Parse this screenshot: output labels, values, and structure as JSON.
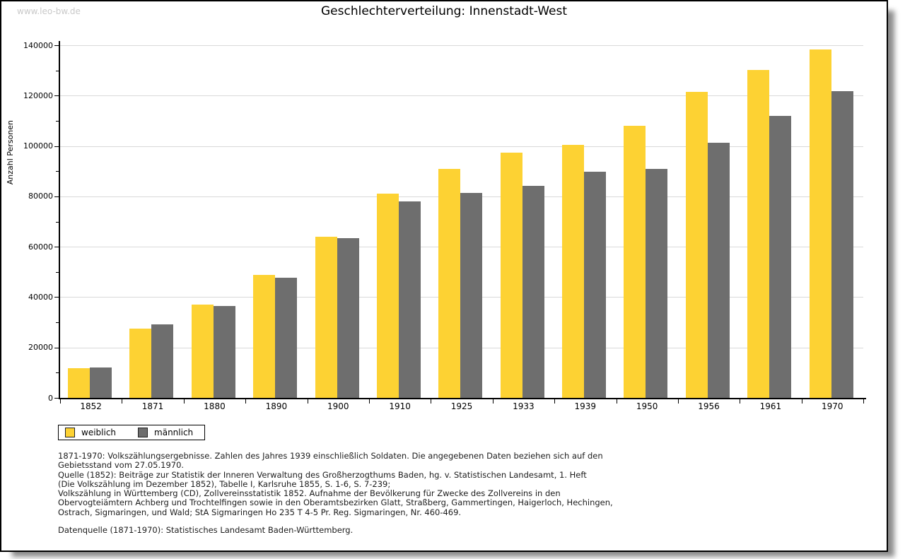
{
  "watermark": "www.leo-bw.de",
  "title": "Geschlechterverteilung: Innenstadt-West",
  "colors": {
    "weiblich": "#FDD233",
    "maennlich": "#6E6E6E",
    "gridline": "#D9D9D9",
    "watermark": "#C9C9C9"
  },
  "chart_data": {
    "type": "bar",
    "title": "Geschlechterverteilung: Innenstadt-West",
    "xlabel": "",
    "ylabel": "Anzahl Personen",
    "ylim": [
      0,
      140000
    ],
    "ytick_step": 20000,
    "yminor_step": 10000,
    "grid": true,
    "legend_position": "bottom-left",
    "categories": [
      "1852",
      "1871",
      "1880",
      "1890",
      "1900",
      "1910",
      "1925",
      "1933",
      "1939",
      "1950",
      "1956",
      "1961",
      "1970"
    ],
    "series": [
      {
        "name": "weiblich",
        "color": "#FDD233",
        "values": [
          11900,
          27600,
          37100,
          48900,
          64000,
          81200,
          91000,
          97500,
          100500,
          108100,
          121400,
          130300,
          138400
        ]
      },
      {
        "name": "männlich",
        "color": "#6E6E6E",
        "values": [
          12200,
          29200,
          36500,
          47800,
          63500,
          78100,
          81500,
          84300,
          89900,
          91000,
          101400,
          112000,
          121700
        ]
      }
    ]
  },
  "legend": {
    "items": [
      {
        "label": "weiblich",
        "color": "#FDD233"
      },
      {
        "label": "männlich",
        "color": "#6E6E6E"
      }
    ]
  },
  "footnotes": {
    "lines": [
      "1871-1970: Volkszählungsergebnisse. Zahlen des Jahres 1939 einschließlich Soldaten. Die angegebenen Daten beziehen sich auf den",
      "Gebietsstand vom 27.05.1970.",
      "Quelle (1852): Beiträge zur Statistik der Inneren Verwaltung des Großherzogthums Baden, hg. v. Statistischen Landesamt, 1. Heft",
      "(Die Volkszählung im Dezember 1852), Tabelle I, Karlsruhe 1855, S. 1-6, S. 7-239;",
      "Volkszählung in Württemberg (CD), Zollvereinsstatistik 1852. Aufnahme der Bevölkerung für Zwecke des Zollvereins in den",
      "Obervogteiämtern Achberg und Trochtelfingen sowie in den Oberamtsbezirken Glatt, Straßberg, Gammertingen, Haigerloch, Hechingen,",
      "Ostrach, Sigmaringen, und Wald; StA Sigmaringen Ho 235 T 4-5 Pr. Reg. Sigmaringen, Nr. 460-469."
    ],
    "datasource": "Datenquelle (1871-1970): Statistisches Landesamt Baden-Württemberg."
  }
}
